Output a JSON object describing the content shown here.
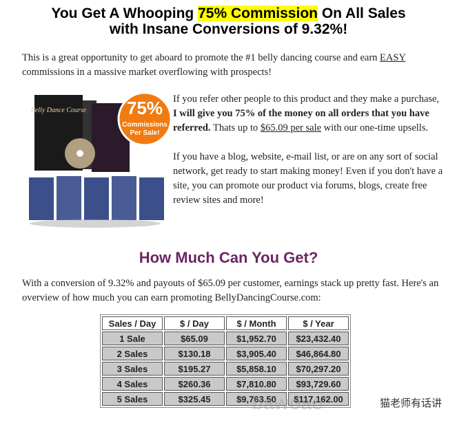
{
  "header": {
    "title_before": "You Get A Whooping",
    "title_highlight": "75% Commission",
    "title_after": "On All Sales",
    "title_line2": "with Insane Conversions of 9.32%!"
  },
  "intro": {
    "text": "This is a great opportunity to get aboard to promote the #1 belly dancing course and earn",
    "underlined": "EASY",
    "text_end": "commissions in a massive market overflowing with prospects!"
  },
  "image": {
    "box_title": "Belly Dance Course",
    "badge_percent": "75%",
    "badge_line1": "Commissions",
    "badge_line2": "Per Sale!"
  },
  "offer": {
    "p1_start": "If you refer other people to this product and they make a purchase,",
    "p1_bold": "I will give you 75% of the money on all orders that you have referred.",
    "p1_mid": "Thats up to",
    "p1_underlined": "$65.09 per sale",
    "p1_end": "with our one-time upsells.",
    "p2": "If you have a blog, website, e-mail list, or are on any sort of social network, get ready to start making money! Even if you don't have a site, you can promote our product via forums, blogs, create free review sites and more!"
  },
  "section": {
    "heading": "How Much Can You Get?",
    "text": "With a conversion of 9.32% and payouts of $65.09 per customer, earnings stack up pretty fast. Here's an overview of how much you can earn promoting BellyDancingCourse.com:"
  },
  "table": {
    "columns": [
      "Sales  / Day",
      "$ / Day",
      "$ / Month",
      "$ / Year"
    ],
    "rows": [
      [
        "1 Sale",
        "$65.09",
        "$1,952.70",
        "$23,432.40"
      ],
      [
        "2 Sales",
        "$130.18",
        "$3,905.40",
        "$46,864.80"
      ],
      [
        "3 Sales",
        "$195.27",
        "$5,858.10",
        "$70,297.20"
      ],
      [
        "4 Sales",
        "$260.36",
        "$7,810.80",
        "$93,729.60"
      ],
      [
        "5 Sales",
        "$325.45",
        "$9,763.50",
        "$117,162.00"
      ]
    ]
  },
  "watermark": {
    "site": "bawoao",
    "author": "猫老师有话讲"
  }
}
